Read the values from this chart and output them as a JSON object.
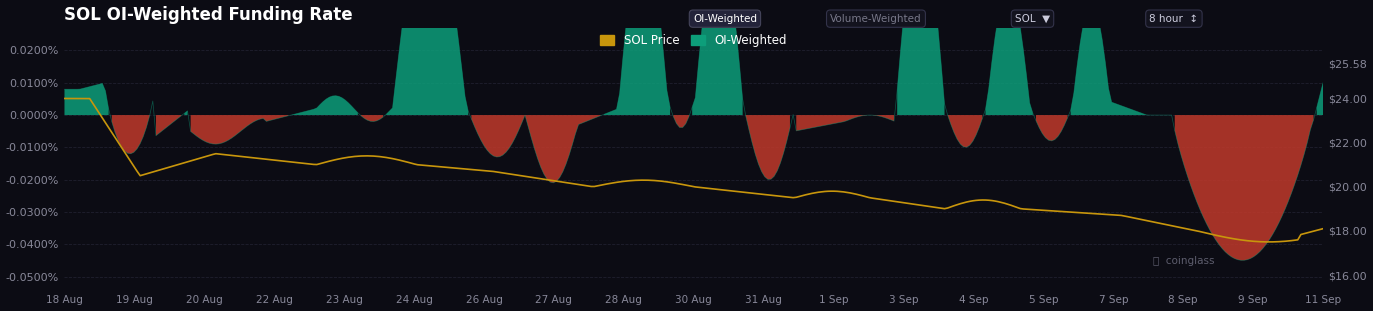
{
  "title": "SOL OI-Weighted Funding Rate",
  "bg_color": "#0c0c14",
  "plot_bg_color": "#0c0c14",
  "grid_color": "#252535",
  "left_axis_label_color": "#888899",
  "right_axis_label_color": "#888899",
  "teal_color": "#0d9e7a",
  "teal_fill_color": "#0d9e7a",
  "red_color": "#c0392b",
  "red_fill_color": "#c0392b",
  "yellow_color": "#c8960c",
  "legend_sol_color": "#c8960c",
  "legend_oi_color": "#0d9e7a",
  "x_tick_labels": [
    "18 Aug",
    "19 Aug",
    "20 Aug",
    "22 Aug",
    "23 Aug",
    "24 Aug",
    "26 Aug",
    "27 Aug",
    "28 Aug",
    "30 Aug",
    "31 Aug",
    "1 Sep",
    "3 Sep",
    "4 Sep",
    "5 Sep",
    "7 Sep",
    "8 Sep",
    "9 Sep",
    "11 Sep"
  ],
  "y_left_ticks": [
    0.0002,
    0.0001,
    0.0,
    -0.0001,
    -0.0002,
    -0.0003,
    -0.0004,
    -0.0005
  ],
  "y_right_ticks": [
    25.58,
    24.0,
    22.0,
    20.0,
    18.0,
    16.0
  ],
  "ylim_left": [
    -0.00055,
    0.00027
  ],
  "ylim_right": [
    15.2,
    27.2
  ],
  "sol_price_min": 130,
  "sol_price_max": 180
}
